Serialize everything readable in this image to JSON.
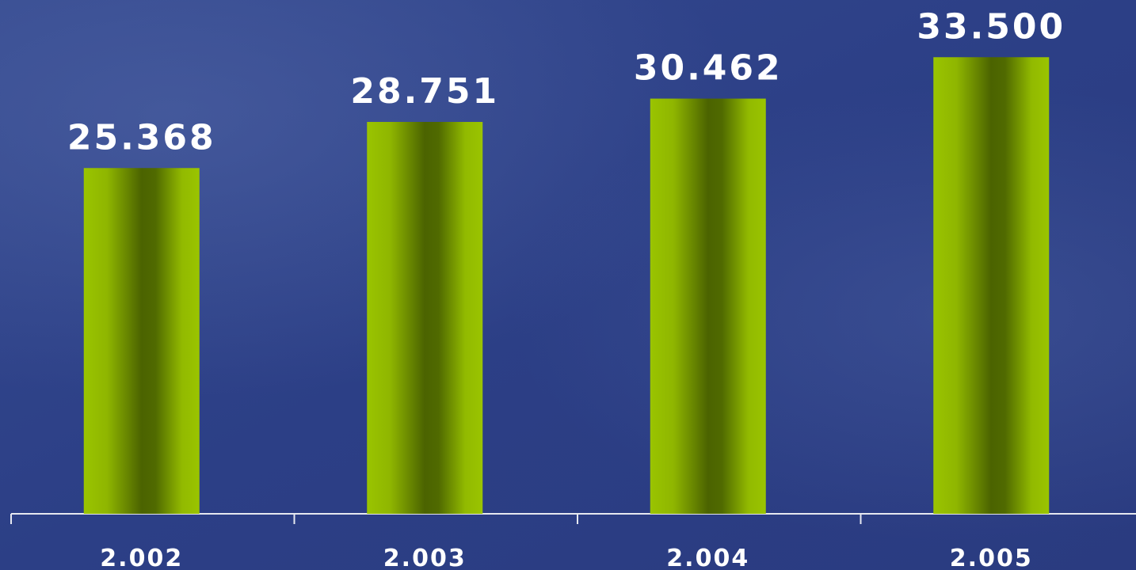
{
  "chart_data": {
    "type": "bar",
    "categories": [
      "2.002",
      "2.003",
      "2.004",
      "2.005"
    ],
    "values": [
      25368,
      28751,
      30462,
      33500
    ],
    "value_labels": [
      "25.368",
      "28.751",
      "30.462",
      "33.500"
    ],
    "color": "#9ac400",
    "ylim": [
      0,
      37000
    ]
  }
}
